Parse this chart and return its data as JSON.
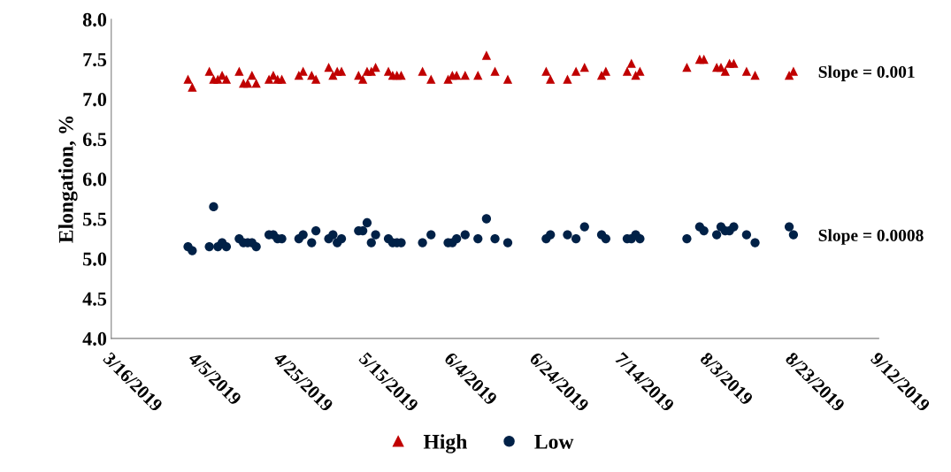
{
  "chart_data": {
    "type": "scatter",
    "ylabel": "Elongation, %",
    "xlim": [
      "2019-03-16",
      "2019-09-12"
    ],
    "xticks": [
      {
        "value": "2019-03-16",
        "label": "3/16/2019"
      },
      {
        "value": "2019-04-05",
        "label": "4/5/2019"
      },
      {
        "value": "2019-04-25",
        "label": "4/25/2019"
      },
      {
        "value": "2019-05-15",
        "label": "5/15/2019"
      },
      {
        "value": "2019-06-04",
        "label": "6/4/2019"
      },
      {
        "value": "2019-06-24",
        "label": "6/24/2019"
      },
      {
        "value": "2019-07-14",
        "label": "7/14/2019"
      },
      {
        "value": "2019-08-03",
        "label": "8/3/2019"
      },
      {
        "value": "2019-08-23",
        "label": "8/23/2019"
      },
      {
        "value": "2019-09-12",
        "label": "9/12/2019"
      }
    ],
    "ylim": [
      4.0,
      8.0
    ],
    "yticks": [
      {
        "value": 4.0,
        "label": "4.0"
      },
      {
        "value": 4.5,
        "label": "4.5"
      },
      {
        "value": 5.0,
        "label": "5.0"
      },
      {
        "value": 5.5,
        "label": "5.5"
      },
      {
        "value": 6.0,
        "label": "6.0"
      },
      {
        "value": 6.5,
        "label": "6.5"
      },
      {
        "value": 7.0,
        "label": "7.0"
      },
      {
        "value": 7.5,
        "label": "7.5"
      },
      {
        "value": 8.0,
        "label": "8.0"
      }
    ],
    "x": [
      "2019-04-03",
      "2019-04-04",
      "2019-04-08",
      "2019-04-09",
      "2019-04-10",
      "2019-04-11",
      "2019-04-12",
      "2019-04-15",
      "2019-04-16",
      "2019-04-17",
      "2019-04-18",
      "2019-04-19",
      "2019-04-22",
      "2019-04-23",
      "2019-04-24",
      "2019-04-25",
      "2019-04-29",
      "2019-04-30",
      "2019-05-02",
      "2019-05-03",
      "2019-05-06",
      "2019-05-07",
      "2019-05-08",
      "2019-05-09",
      "2019-05-13",
      "2019-05-14",
      "2019-05-15",
      "2019-05-16",
      "2019-05-17",
      "2019-05-20",
      "2019-05-21",
      "2019-05-22",
      "2019-05-23",
      "2019-05-28",
      "2019-05-30",
      "2019-06-03",
      "2019-06-04",
      "2019-06-05",
      "2019-06-07",
      "2019-06-10",
      "2019-06-12",
      "2019-06-14",
      "2019-06-17",
      "2019-06-26",
      "2019-06-27",
      "2019-07-01",
      "2019-07-03",
      "2019-07-05",
      "2019-07-09",
      "2019-07-10",
      "2019-07-15",
      "2019-07-16",
      "2019-07-17",
      "2019-07-18",
      "2019-07-29",
      "2019-08-01",
      "2019-08-02",
      "2019-08-05",
      "2019-08-06",
      "2019-08-07",
      "2019-08-08",
      "2019-08-09",
      "2019-08-12",
      "2019-08-14",
      "2019-08-22",
      "2019-08-23"
    ],
    "series": [
      {
        "name": "High",
        "color": "#c00000",
        "marker": "triangle",
        "values": [
          7.25,
          7.15,
          7.35,
          7.25,
          7.25,
          7.3,
          7.25,
          7.35,
          7.2,
          7.2,
          7.3,
          7.2,
          7.25,
          7.3,
          7.25,
          7.25,
          7.3,
          7.35,
          7.3,
          7.25,
          7.4,
          7.3,
          7.35,
          7.35,
          7.3,
          7.25,
          7.35,
          7.35,
          7.4,
          7.35,
          7.3,
          7.3,
          7.3,
          7.35,
          7.25,
          7.25,
          7.3,
          7.3,
          7.3,
          7.3,
          7.55,
          7.35,
          7.25,
          7.35,
          7.25,
          7.25,
          7.35,
          7.4,
          7.3,
          7.35,
          7.35,
          7.45,
          7.3,
          7.35,
          7.4,
          7.5,
          7.5,
          7.4,
          7.4,
          7.35,
          7.45,
          7.45,
          7.35,
          7.3,
          7.3,
          7.35
        ]
      },
      {
        "name": "Low",
        "color": "#002147",
        "marker": "circle",
        "values": [
          5.15,
          5.1,
          5.15,
          5.65,
          5.15,
          5.2,
          5.15,
          5.25,
          5.2,
          5.2,
          5.2,
          5.15,
          5.3,
          5.3,
          5.25,
          5.25,
          5.25,
          5.3,
          5.2,
          5.35,
          5.25,
          5.3,
          5.2,
          5.25,
          5.35,
          5.35,
          5.45,
          5.2,
          5.3,
          5.25,
          5.2,
          5.2,
          5.2,
          5.2,
          5.3,
          5.2,
          5.2,
          5.25,
          5.3,
          5.25,
          5.5,
          5.25,
          5.2,
          5.25,
          5.3,
          5.3,
          5.25,
          5.4,
          5.3,
          5.25,
          5.25,
          5.25,
          5.3,
          5.25,
          5.25,
          5.4,
          5.35,
          5.3,
          5.4,
          5.35,
          5.35,
          5.4,
          5.3,
          5.2,
          5.4,
          5.3
        ]
      }
    ],
    "annotations": [
      "Slope = 0.001",
      "Slope = 0.0008"
    ],
    "legend": "bottom",
    "grid": false
  }
}
